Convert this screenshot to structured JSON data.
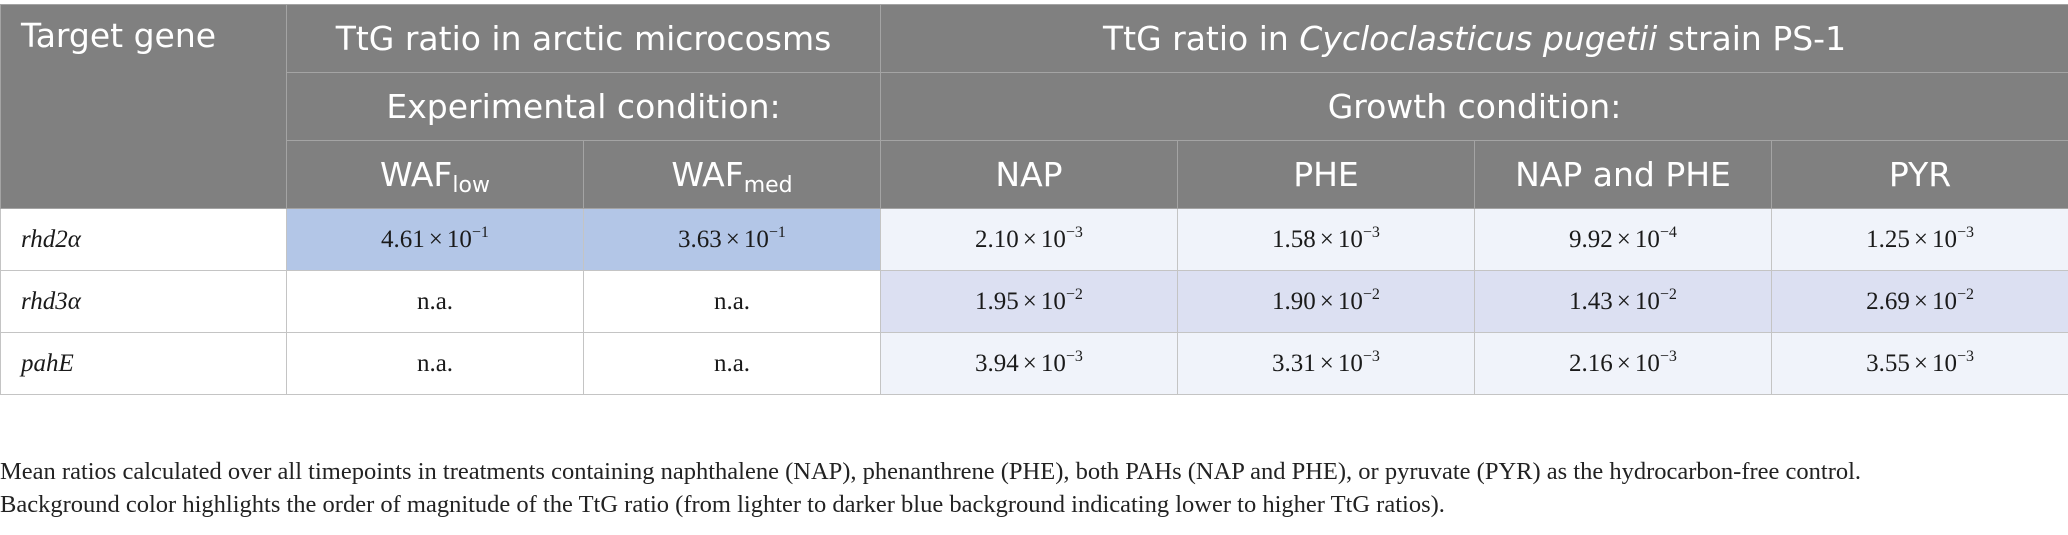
{
  "header": {
    "target_gene": "Target gene",
    "arctic_group": "TtG ratio in arctic microcosms",
    "strain_group_prefix": "TtG ratio in ",
    "strain_group_species": "Cycloclasticus pugetii",
    "strain_group_suffix": " strain PS-1",
    "experimental_condition": "Experimental condition:",
    "growth_condition": "Growth condition:",
    "columns": [
      {
        "base": "WAF",
        "sub": "low"
      },
      {
        "base": "WAF",
        "sub": "med"
      },
      {
        "base": "NAP",
        "sub": ""
      },
      {
        "base": "PHE",
        "sub": ""
      },
      {
        "base": "NAP and PHE",
        "sub": ""
      },
      {
        "base": "PYR",
        "sub": ""
      }
    ]
  },
  "rows": [
    {
      "gene": "rhd2α",
      "cells": [
        {
          "mantissa": "4.61",
          "times": "×",
          "base": "10",
          "exp": "−1",
          "shade": "strong"
        },
        {
          "mantissa": "3.63",
          "times": "×",
          "base": "10",
          "exp": "−1",
          "shade": "strong"
        },
        {
          "mantissa": "2.10",
          "times": "×",
          "base": "10",
          "exp": "−3",
          "shade": "light"
        },
        {
          "mantissa": "1.58",
          "times": "×",
          "base": "10",
          "exp": "−3",
          "shade": "light"
        },
        {
          "mantissa": "9.92",
          "times": "×",
          "base": "10",
          "exp": "−4",
          "shade": "light"
        },
        {
          "mantissa": "1.25",
          "times": "×",
          "base": "10",
          "exp": "−3",
          "shade": "light"
        }
      ]
    },
    {
      "gene": "rhd3α",
      "cells": [
        {
          "text": "n.a.",
          "shade": "none"
        },
        {
          "text": "n.a.",
          "shade": "none"
        },
        {
          "mantissa": "1.95",
          "times": "×",
          "base": "10",
          "exp": "−2",
          "shade": "mid"
        },
        {
          "mantissa": "1.90",
          "times": "×",
          "base": "10",
          "exp": "−2",
          "shade": "mid"
        },
        {
          "mantissa": "1.43",
          "times": "×",
          "base": "10",
          "exp": "−2",
          "shade": "mid"
        },
        {
          "mantissa": "2.69",
          "times": "×",
          "base": "10",
          "exp": "−2",
          "shade": "mid"
        }
      ]
    },
    {
      "gene": "pahE",
      "cells": [
        {
          "text": "n.a.",
          "shade": "none"
        },
        {
          "text": "n.a.",
          "shade": "none"
        },
        {
          "mantissa": "3.94",
          "times": "×",
          "base": "10",
          "exp": "−3",
          "shade": "light"
        },
        {
          "mantissa": "3.31",
          "times": "×",
          "base": "10",
          "exp": "−3",
          "shade": "light"
        },
        {
          "mantissa": "2.16",
          "times": "×",
          "base": "10",
          "exp": "−3",
          "shade": "light"
        },
        {
          "mantissa": "3.55",
          "times": "×",
          "base": "10",
          "exp": "−3",
          "shade": "light"
        }
      ]
    }
  ],
  "footnote": {
    "line1": "Mean ratios calculated over all timepoints in treatments containing naphthalene (NAP), phenanthrene (PHE), both PAHs (NAP and PHE), or pyruvate (PYR) as the hydrocarbon-free control.",
    "line2": "Background color highlights the order of magnitude of the TtG ratio (from lighter to darker blue background indicating lower to higher TtG ratios)."
  },
  "colors": {
    "header_bg": "#808080",
    "header_text": "#ffffff",
    "shade_strong": "#b3c6e7",
    "shade_mid": "#dce0f2",
    "shade_light": "#f0f3fa",
    "shade_none": "#ffffff"
  }
}
